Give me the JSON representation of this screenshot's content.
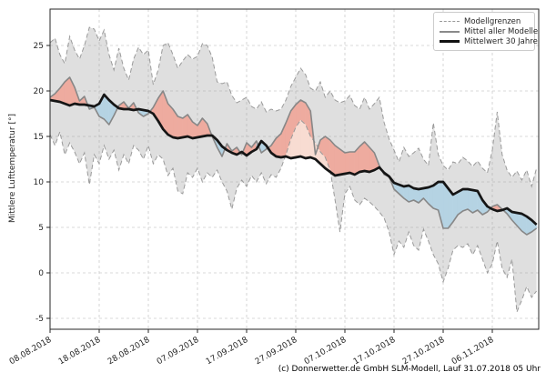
{
  "caption": "(c) Donnerwetter.de GmbH SLM-Modell, Lauf 31.07.2018 05 Uhr",
  "legend": {
    "items": [
      {
        "label": "Modellgrenzen",
        "style": "dashed-gray"
      },
      {
        "label": "Mittel aller Modelle",
        "style": "solid-gray"
      },
      {
        "label": "Mittelwert 30 Jahre",
        "style": "solid-black-thick"
      }
    ]
  },
  "colors": {
    "grid": "#cccccc",
    "band_fill": "rgba(155,155,155,0.32)",
    "bound_line": "#9a9a9a",
    "mean_line": "#878787",
    "climate_line": "#151515",
    "warm_fill": "#eeab9f",
    "warm_fill_pale": "#f8dcd2",
    "cold_fill": "#b5d3e3",
    "spine": "#262626",
    "tick_text": "#262626"
  },
  "chart_data": {
    "type": "line",
    "title": "",
    "xlabel": "",
    "ylabel": "Mittlere Lufttemperatur [°]",
    "grid": true,
    "legend_position": "top-right",
    "x_start_date": "08.08.2018",
    "x_interval_days": 1,
    "x_tick_day_indices": [
      0,
      10,
      20,
      30,
      40,
      50,
      60,
      70,
      80,
      90
    ],
    "x_tick_labels": [
      "08.08.2018",
      "18.08.2018",
      "28.08.2018",
      "07.09.2018",
      "17.09.2018",
      "27.09.2018",
      "07.10.2018",
      "17.10.2018",
      "27.10.2018",
      "06.11.2018"
    ],
    "y_ticks": [
      -5,
      0,
      5,
      10,
      15,
      20,
      25
    ],
    "ylim": [
      -6.2,
      29.2
    ],
    "series": [
      {
        "name": "Modellgrenzen (obere Grenze)",
        "role": "upper_bound",
        "style": "dashed-gray",
        "values": [
          25.3,
          25.8,
          24.0,
          23.0,
          26.0,
          24.5,
          23.5,
          25.0,
          27.0,
          26.8,
          25.5,
          26.7,
          24.0,
          22.3,
          24.7,
          22.5,
          21.2,
          23.5,
          24.8,
          24.0,
          24.5,
          20.7,
          22.3,
          25.0,
          25.3,
          24.0,
          22.5,
          23.3,
          24.0,
          23.5,
          23.8,
          25.2,
          25.0,
          23.7,
          21.0,
          20.8,
          21.0,
          19.5,
          18.7,
          19.0,
          19.3,
          18.3,
          18.0,
          18.8,
          17.7,
          18.0,
          17.8,
          18.0,
          19.0,
          20.5,
          21.5,
          22.5,
          21.8,
          20.3,
          20.0,
          21.0,
          19.3,
          20.0,
          19.0,
          18.7,
          18.9,
          19.5,
          18.4,
          18.0,
          19.3,
          18.0,
          18.6,
          19.3,
          16.5,
          14.7,
          13.5,
          12.2,
          13.8,
          12.8,
          13.2,
          13.7,
          12.5,
          11.8,
          16.5,
          13.0,
          11.8,
          11.3,
          12.2,
          12.0,
          12.7,
          12.3,
          11.7,
          12.3,
          11.5,
          11.0,
          13.5,
          17.7,
          13.0,
          11.3,
          10.5,
          11.2,
          10.2,
          11.3,
          9.5,
          11.5
        ]
      },
      {
        "name": "Modellgrenzen (untere Grenze)",
        "role": "lower_bound",
        "style": "dashed-gray",
        "values": [
          15.2,
          14.0,
          15.5,
          13.0,
          14.3,
          13.3,
          12.0,
          13.2,
          9.7,
          13.0,
          12.0,
          14.0,
          12.5,
          13.5,
          11.3,
          13.0,
          12.0,
          14.0,
          13.5,
          12.5,
          14.0,
          12.0,
          13.0,
          12.5,
          10.7,
          11.5,
          9.0,
          8.7,
          11.0,
          10.5,
          11.5,
          10.0,
          11.0,
          10.5,
          11.3,
          10.0,
          9.0,
          7.0,
          9.3,
          10.2,
          9.5,
          10.7,
          10.0,
          11.0,
          9.8,
          10.8,
          10.5,
          11.5,
          13.0,
          14.7,
          16.0,
          16.8,
          16.3,
          15.0,
          14.3,
          13.3,
          12.7,
          11.3,
          8.0,
          4.5,
          8.7,
          9.5,
          8.0,
          7.5,
          8.2,
          7.8,
          7.3,
          6.7,
          6.0,
          4.5,
          2.0,
          3.5,
          2.8,
          4.5,
          3.0,
          2.5,
          4.8,
          3.5,
          2.0,
          1.0,
          -1.0,
          0.5,
          2.5,
          3.0,
          2.8,
          3.2,
          2.0,
          3.0,
          1.5,
          0.0,
          1.0,
          3.5,
          0.5,
          -0.5,
          1.5,
          -4.3,
          -3.0,
          -1.5,
          -2.7,
          -2.0
        ]
      },
      {
        "name": "Mittel aller Modelle",
        "role": "model_mean",
        "style": "solid-gray",
        "values": [
          19.3,
          19.7,
          20.3,
          21.0,
          21.5,
          20.4,
          18.9,
          19.4,
          18.0,
          18.2,
          17.2,
          16.9,
          16.3,
          17.3,
          18.4,
          18.8,
          18.1,
          18.7,
          17.6,
          17.2,
          17.5,
          18.2,
          19.2,
          20.0,
          18.6,
          18.0,
          17.2,
          17.0,
          17.4,
          16.6,
          16.2,
          17.0,
          16.4,
          15.0,
          13.8,
          12.8,
          14.2,
          13.4,
          13.8,
          13.0,
          14.3,
          13.8,
          14.5,
          13.2,
          13.6,
          14.0,
          14.8,
          15.3,
          16.5,
          17.8,
          18.5,
          19.0,
          18.7,
          17.8,
          13.0,
          14.6,
          15.0,
          14.6,
          14.0,
          13.6,
          13.2,
          13.3,
          13.3,
          13.9,
          14.4,
          13.8,
          13.2,
          11.8,
          10.8,
          10.6,
          9.2,
          8.7,
          8.2,
          7.8,
          8.0,
          7.7,
          8.2,
          7.6,
          7.1,
          6.9,
          4.9,
          4.9,
          5.6,
          6.4,
          6.8,
          7.0,
          6.6,
          6.9,
          6.4,
          6.7,
          7.3,
          7.5,
          7.0,
          6.5,
          5.8,
          5.2,
          4.6,
          4.2,
          4.5,
          4.9
        ]
      },
      {
        "name": "Mittelwert 30 Jahre",
        "role": "climate_mean",
        "style": "solid-black-thick",
        "values": [
          19.0,
          18.9,
          18.8,
          18.6,
          18.4,
          18.6,
          18.5,
          18.5,
          18.4,
          18.3,
          18.6,
          19.6,
          19.0,
          18.5,
          18.1,
          18.0,
          18.0,
          17.9,
          18.0,
          17.9,
          17.8,
          17.5,
          16.7,
          15.8,
          15.2,
          14.9,
          14.8,
          14.9,
          15.0,
          14.8,
          14.9,
          15.0,
          15.1,
          15.1,
          14.6,
          13.9,
          13.5,
          13.2,
          13.0,
          13.3,
          12.9,
          13.3,
          13.6,
          14.5,
          14.0,
          13.2,
          12.8,
          12.7,
          12.8,
          12.6,
          12.7,
          12.8,
          12.6,
          12.7,
          12.5,
          12.0,
          11.5,
          11.1,
          10.7,
          10.8,
          10.9,
          11.0,
          10.8,
          11.1,
          11.2,
          11.1,
          11.3,
          11.6,
          11.0,
          10.6,
          9.9,
          9.7,
          9.5,
          9.6,
          9.3,
          9.2,
          9.3,
          9.4,
          9.6,
          10.0,
          10.0,
          9.3,
          8.6,
          8.9,
          9.2,
          9.2,
          9.1,
          9.0,
          8.0,
          7.3,
          7.0,
          6.8,
          6.9,
          7.1,
          6.7,
          6.6,
          6.5,
          6.2,
          5.8,
          5.3
        ]
      }
    ],
    "fills": [
      {
        "name": "model-bounds-band",
        "between": [
          "upper_bound",
          "lower_bound"
        ],
        "color_key": "band_fill"
      },
      {
        "name": "warmer-than-climate",
        "between": [
          "model_mean",
          "climate_mean"
        ],
        "when": "model_mean>climate_mean",
        "color_key": "warm_fill"
      },
      {
        "name": "colder-than-climate",
        "between": [
          "model_mean",
          "climate_mean"
        ],
        "when": "model_mean<climate_mean",
        "color_key": "cold_fill"
      },
      {
        "name": "warm-below-lower-bound",
        "between": [
          "lower_bound",
          "climate_mean"
        ],
        "when": "lower_bound>climate_mean",
        "color_key": "warm_fill_pale"
      }
    ]
  }
}
